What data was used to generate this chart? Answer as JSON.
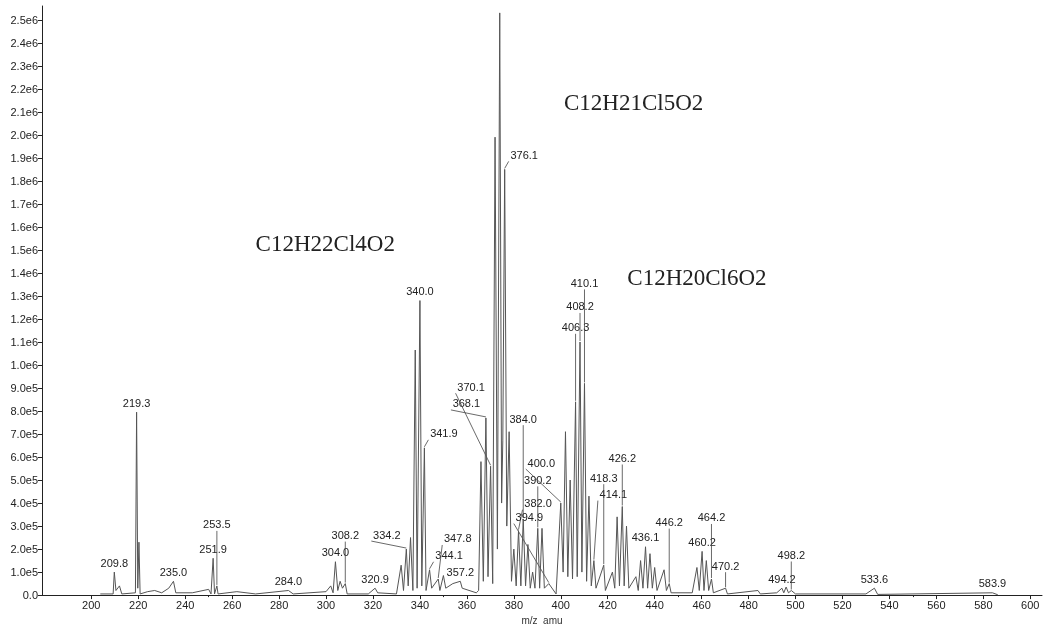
{
  "chart_data": {
    "type": "line",
    "xlabel": "m/z  amu",
    "xlim": [
      179,
      605
    ],
    "xticks": [
      200,
      220,
      240,
      260,
      280,
      300,
      320,
      340,
      360,
      380,
      400,
      420,
      440,
      460,
      480,
      500,
      520,
      540,
      560,
      580,
      600
    ],
    "ylim": [
      0,
      2560000
    ],
    "yticks": [
      {
        "value": 0,
        "label": "0.0"
      },
      {
        "value": 100000,
        "label": "1.0e5"
      },
      {
        "value": 200000,
        "label": "2.0e5"
      },
      {
        "value": 300000,
        "label": "3.0e5"
      },
      {
        "value": 400000,
        "label": "4.0e5"
      },
      {
        "value": 500000,
        "label": "5.0e5"
      },
      {
        "value": 600000,
        "label": "6.0e5"
      },
      {
        "value": 700000,
        "label": "7.0e5"
      },
      {
        "value": 800000,
        "label": "8.0e5"
      },
      {
        "value": 900000,
        "label": "9.0e5"
      },
      {
        "value": 1000000,
        "label": "1.0e6"
      },
      {
        "value": 1100000,
        "label": "1.1e6"
      },
      {
        "value": 1200000,
        "label": "1.2e6"
      },
      {
        "value": 1300000,
        "label": "1.3e6"
      },
      {
        "value": 1400000,
        "label": "1.4e6"
      },
      {
        "value": 1500000,
        "label": "1.5e6"
      },
      {
        "value": 1600000,
        "label": "1.6e6"
      },
      {
        "value": 1700000,
        "label": "1.7e6"
      },
      {
        "value": 1800000,
        "label": "1.8e6"
      },
      {
        "value": 1900000,
        "label": "1.9e6"
      },
      {
        "value": 2000000,
        "label": "2.0e6"
      },
      {
        "value": 2100000,
        "label": "2.1e6"
      },
      {
        "value": 2200000,
        "label": "2.2e6"
      },
      {
        "value": 2300000,
        "label": "2.3e6"
      },
      {
        "value": 2400000,
        "label": "2.4e6"
      },
      {
        "value": 2500000,
        "label": "2.5e6"
      }
    ],
    "grid": false,
    "annotations": [
      "C12H22Cl4O2",
      "C12H21Cl5O2",
      "C12H20Cl6O2",
      {
        "text": "209.8",
        "x": 209.8,
        "y": 100000
      },
      {
        "text": "219.3",
        "x": 219.3,
        "y": 795000
      },
      {
        "text": "235.0",
        "x": 235,
        "y": 60000
      },
      {
        "text": "251.9",
        "x": 251.9,
        "y": 160000
      },
      {
        "text": "253.5",
        "x": 253.5,
        "y": 40000
      },
      {
        "text": "284.0",
        "x": 284,
        "y": 20000
      },
      {
        "text": "304.0",
        "x": 304,
        "y": 145000
      },
      {
        "text": "308.2",
        "x": 308.2,
        "y": 50000
      },
      {
        "text": "320.9",
        "x": 320.9,
        "y": 30000
      },
      {
        "text": "334.2",
        "x": 334.2,
        "y": 200000
      },
      {
        "text": "340.0",
        "x": 340,
        "y": 1280000
      },
      {
        "text": "341.9",
        "x": 341.9,
        "y": 640000
      },
      {
        "text": "344.1",
        "x": 344.1,
        "y": 110000
      },
      {
        "text": "347.8",
        "x": 347.8,
        "y": 70000
      },
      {
        "text": "357.2",
        "x": 357.2,
        "y": 60000
      },
      {
        "text": "368.1",
        "x": 368.1,
        "y": 770000
      },
      {
        "text": "370.1",
        "x": 370.1,
        "y": 560000
      },
      {
        "text": "376.1",
        "x": 376.1,
        "y": 1850000
      },
      {
        "text": "382.0",
        "x": 382,
        "y": 280000
      },
      {
        "text": "384.0",
        "x": 384,
        "y": 330000
      },
      {
        "text": "390.2",
        "x": 390.2,
        "y": 290000
      },
      {
        "text": "394.9",
        "x": 394.9,
        "y": 50000
      },
      {
        "text": "400.0",
        "x": 400,
        "y": 400000
      },
      {
        "text": "406.3",
        "x": 406.3,
        "y": 840000
      },
      {
        "text": "408.2",
        "x": 408.2,
        "y": 1100000
      },
      {
        "text": "410.1",
        "x": 410.1,
        "y": 920000
      },
      {
        "text": "414.1",
        "x": 414.1,
        "y": 150000
      },
      {
        "text": "418.3",
        "x": 418.3,
        "y": 130000
      },
      {
        "text": "426.2",
        "x": 426.2,
        "y": 385000
      },
      {
        "text": "436.1",
        "x": 436.1,
        "y": 210000
      },
      {
        "text": "446.2",
        "x": 446.2,
        "y": 50000
      },
      {
        "text": "460.2",
        "x": 460.2,
        "y": 190000
      },
      {
        "text": "464.2",
        "x": 464.2,
        "y": 70000
      },
      {
        "text": "470.2",
        "x": 470.2,
        "y": 30000
      },
      {
        "text": "494.2",
        "x": 494.2,
        "y": 30000
      },
      {
        "text": "498.2",
        "x": 498.2,
        "y": 20000
      },
      {
        "text": "533.6",
        "x": 533.6,
        "y": 30000
      },
      {
        "text": "583.9",
        "x": 583.9,
        "y": 10000
      }
    ],
    "series": [
      {
        "color": "#555555",
        "x": [
          204,
          209.3,
          209.8,
          210.5,
          212,
          213,
          218.8,
          219.3,
          219.8,
          220.3,
          220.8,
          224,
          227,
          230,
          233,
          235,
          236,
          243,
          250,
          251,
          251.9,
          252.5,
          253.5,
          254,
          262,
          270,
          284,
          286,
          300,
          302,
          303,
          304,
          305,
          306,
          307,
          308.2,
          309,
          318,
          320.9,
          322,
          330,
          332,
          333,
          334.2,
          335,
          336,
          337,
          338,
          338.8,
          340,
          340.8,
          341.9,
          342.6,
          344.1,
          345,
          347.8,
          348.5,
          350,
          351,
          354,
          357.2,
          358,
          364,
          365,
          366,
          367,
          368.1,
          369,
          370.1,
          371,
          372,
          373,
          374,
          374.8,
          375.3,
          376.1,
          377,
          378,
          379,
          380,
          381,
          382,
          383,
          384,
          385,
          386,
          387,
          388,
          389,
          390.2,
          391,
          392,
          393,
          394.9,
          398,
          400,
          401,
          402,
          403,
          404,
          405,
          406.3,
          407,
          408.2,
          409,
          410.1,
          411,
          412,
          413,
          414.1,
          415,
          418.3,
          419,
          422,
          423,
          424,
          425,
          426.2,
          427,
          428,
          429,
          432,
          433,
          434,
          435,
          436.1,
          437,
          438,
          439,
          440,
          441,
          444,
          445,
          446.2,
          447,
          456,
          458,
          459,
          460.2,
          461,
          462,
          463,
          464.2,
          465,
          470.2,
          471,
          484,
          485,
          492,
          494.2,
          495,
          496,
          497,
          498.2,
          500,
          530,
          533.6,
          535,
          583.9,
          586
        ],
        "values": [
          5000,
          5000,
          100000,
          20000,
          40000,
          5000,
          10000,
          795000,
          30000,
          230000,
          5000,
          15000,
          20000,
          10000,
          30000,
          60000,
          10000,
          10000,
          25000,
          5000,
          160000,
          5000,
          40000,
          5000,
          15000,
          5000,
          20000,
          5000,
          15000,
          40000,
          10000,
          145000,
          20000,
          60000,
          30000,
          50000,
          5000,
          5000,
          30000,
          10000,
          5000,
          130000,
          20000,
          200000,
          40000,
          250000,
          20000,
          1065000,
          30000,
          1280000,
          40000,
          640000,
          20000,
          110000,
          30000,
          70000,
          20000,
          85000,
          30000,
          50000,
          60000,
          30000,
          10000,
          20000,
          580000,
          60000,
          770000,
          80000,
          560000,
          50000,
          1990000,
          200000,
          2530000,
          400000,
          670000,
          1850000,
          300000,
          710000,
          60000,
          200000,
          40000,
          280000,
          40000,
          330000,
          40000,
          220000,
          30000,
          100000,
          30000,
          290000,
          30000,
          290000,
          30000,
          50000,
          5000,
          400000,
          100000,
          710000,
          80000,
          500000,
          70000,
          840000,
          80000,
          1100000,
          100000,
          920000,
          60000,
          430000,
          40000,
          150000,
          30000,
          130000,
          20000,
          100000,
          30000,
          340000,
          40000,
          385000,
          40000,
          300000,
          30000,
          80000,
          20000,
          150000,
          30000,
          210000,
          30000,
          180000,
          30000,
          120000,
          20000,
          110000,
          20000,
          50000,
          10000,
          10000,
          120000,
          20000,
          190000,
          20000,
          150000,
          20000,
          70000,
          10000,
          30000,
          5000,
          20000,
          5000,
          10000,
          30000,
          10000,
          35000,
          10000,
          20000,
          5000,
          5000,
          30000,
          3000,
          10000,
          2000
        ]
      }
    ]
  }
}
